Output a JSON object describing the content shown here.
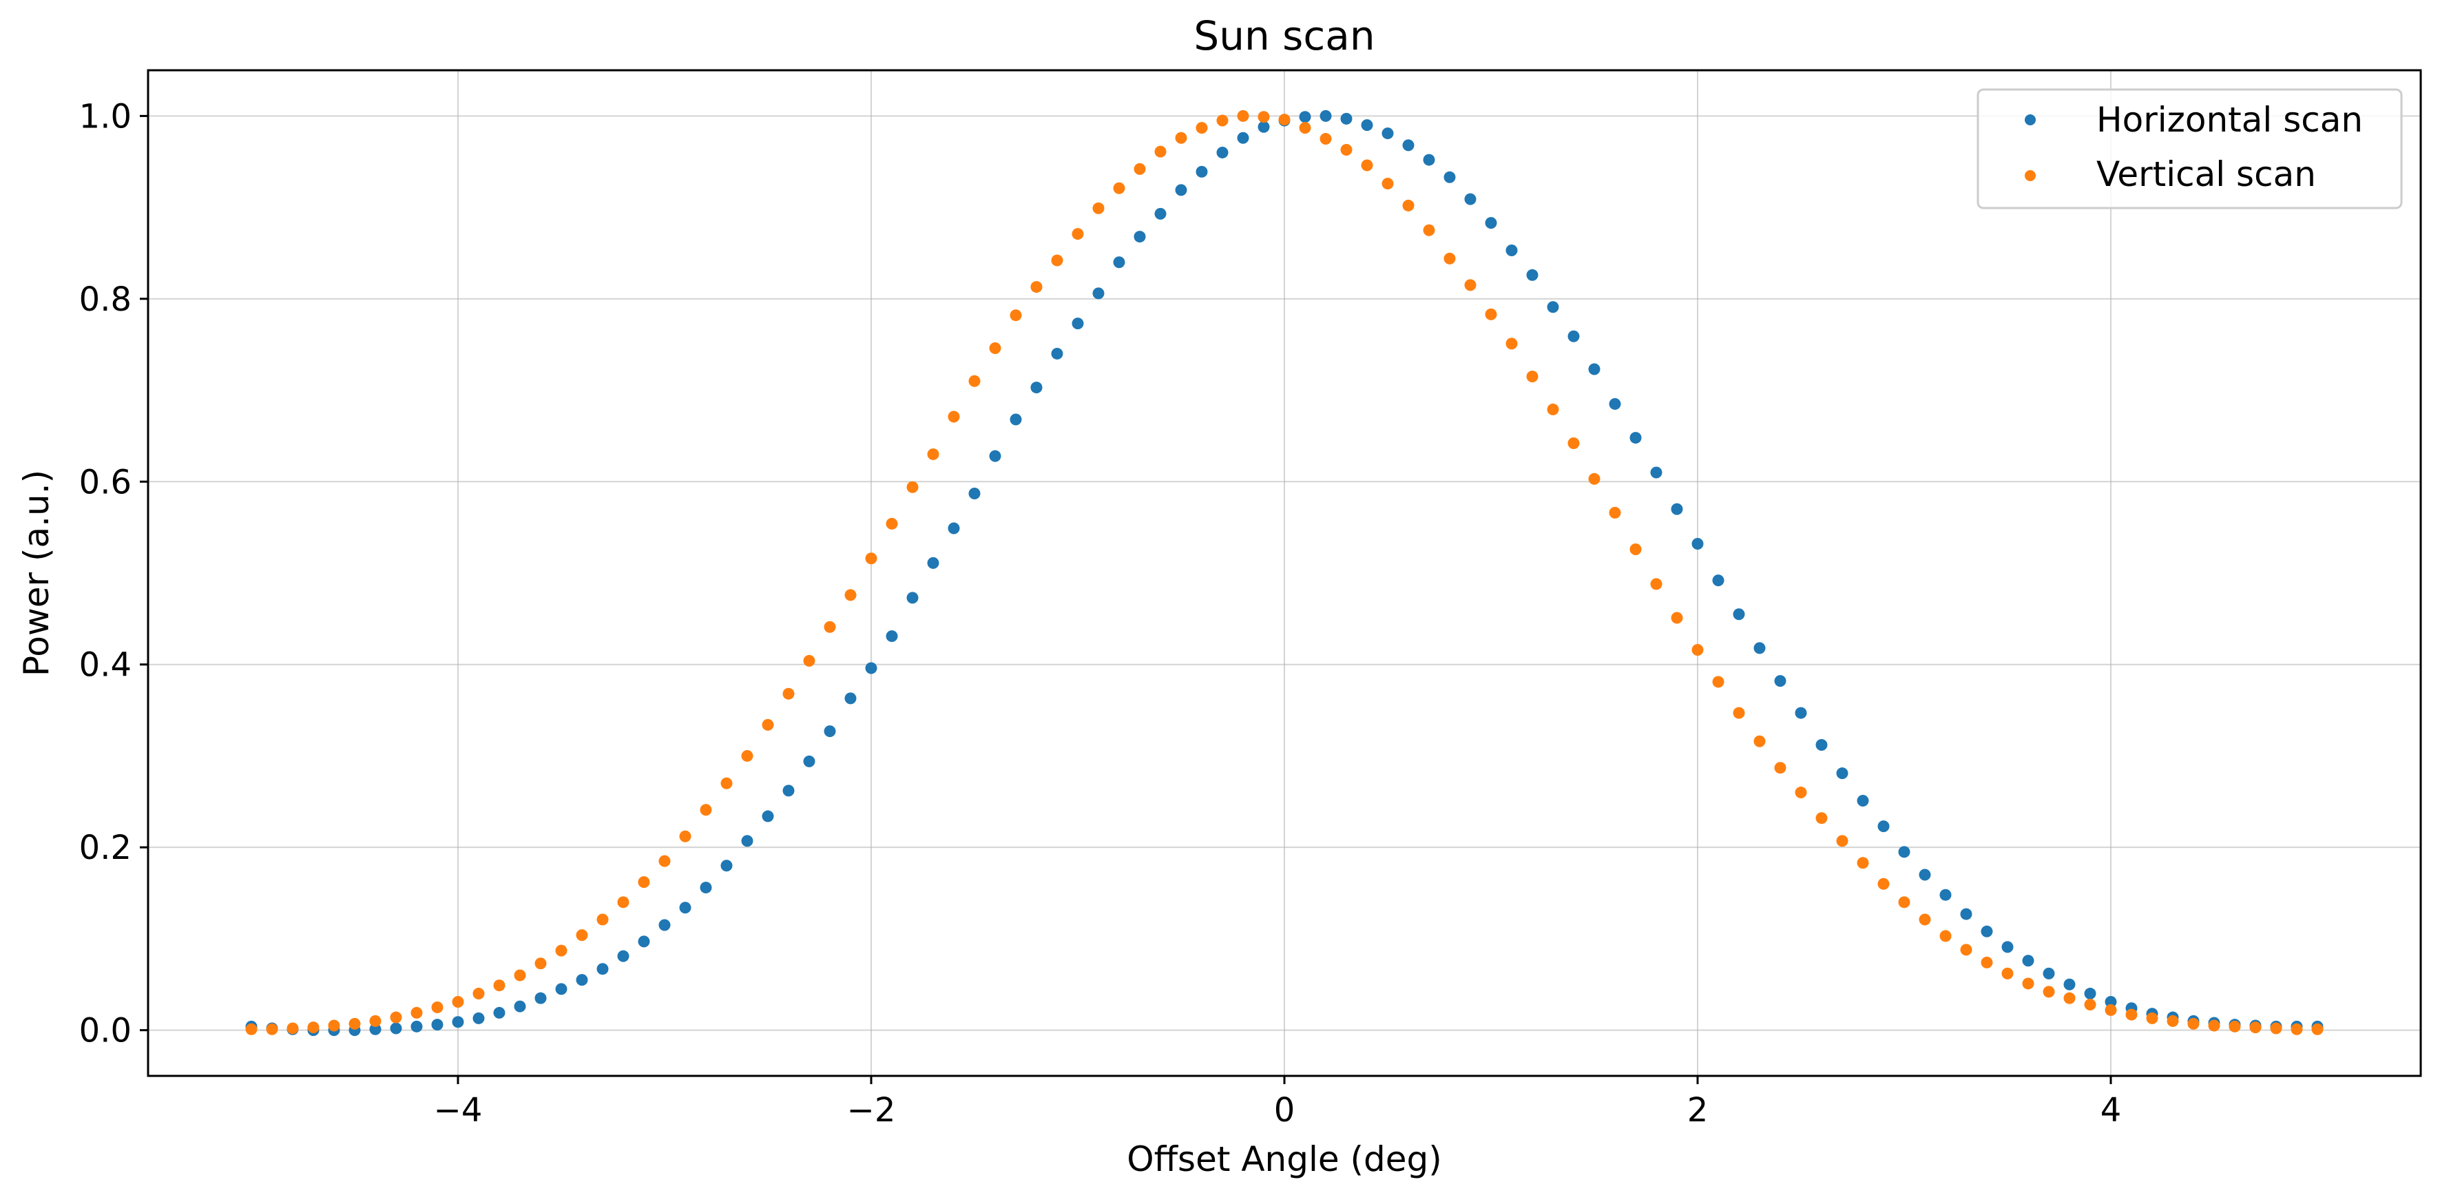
{
  "chart_data": {
    "type": "scatter",
    "title": "Sun scan",
    "xlabel": "Offset Angle (deg)",
    "ylabel": "Power (a.u.)",
    "xlim": [
      -5.5,
      5.5
    ],
    "ylim": [
      -0.05,
      1.05
    ],
    "x_ticks": [
      -4,
      -2,
      0,
      2,
      4
    ],
    "x_tick_labels": [
      "−4",
      "−2",
      "0",
      "2",
      "4"
    ],
    "y_ticks": [
      0.0,
      0.2,
      0.4,
      0.6,
      0.8,
      1.0
    ],
    "y_tick_labels": [
      "0.0",
      "0.2",
      "0.4",
      "0.6",
      "0.8",
      "1.0"
    ],
    "grid": true,
    "legend_position": "top-right",
    "x": [
      -5.0,
      -4.9,
      -4.8,
      -4.7,
      -4.6,
      -4.5,
      -4.4,
      -4.3,
      -4.2,
      -4.1,
      -4.0,
      -3.9,
      -3.8,
      -3.7,
      -3.6,
      -3.5,
      -3.4,
      -3.3,
      -3.2,
      -3.1,
      -3.0,
      -2.9,
      -2.8,
      -2.7,
      -2.6,
      -2.5,
      -2.4,
      -2.3,
      -2.2,
      -2.1,
      -2.0,
      -1.9,
      -1.8,
      -1.7,
      -1.6,
      -1.5,
      -1.4,
      -1.3,
      -1.2,
      -1.1,
      -1.0,
      -0.9,
      -0.8,
      -0.7,
      -0.6,
      -0.5,
      -0.4,
      -0.3,
      -0.2,
      -0.1,
      0.0,
      0.1,
      0.2,
      0.3,
      0.4,
      0.5,
      0.6,
      0.7,
      0.8,
      0.9,
      1.0,
      1.1,
      1.2,
      1.3,
      1.4,
      1.5,
      1.6,
      1.7,
      1.8,
      1.9,
      2.0,
      2.1,
      2.2,
      2.3,
      2.4,
      2.5,
      2.6,
      2.7,
      2.8,
      2.9,
      3.0,
      3.1,
      3.2,
      3.3,
      3.4,
      3.5,
      3.6,
      3.7,
      3.8,
      3.9,
      4.0,
      4.1,
      4.2,
      4.3,
      4.4,
      4.5,
      4.6,
      4.7,
      4.8,
      4.9,
      5.0
    ],
    "series": [
      {
        "name": "Horizontal scan",
        "color": "#1f77b4",
        "values": [
          0.004,
          0.002,
          0.001,
          0.0,
          0.0,
          0.0,
          0.001,
          0.002,
          0.004,
          0.006,
          0.009,
          0.013,
          0.019,
          0.026,
          0.035,
          0.045,
          0.055,
          0.067,
          0.081,
          0.097,
          0.115,
          0.134,
          0.156,
          0.18,
          0.207,
          0.234,
          0.262,
          0.294,
          0.327,
          0.363,
          0.396,
          0.431,
          0.473,
          0.511,
          0.549,
          0.587,
          0.628,
          0.668,
          0.703,
          0.74,
          0.773,
          0.806,
          0.84,
          0.868,
          0.893,
          0.919,
          0.939,
          0.96,
          0.976,
          0.988,
          0.995,
          0.999,
          1.0,
          0.997,
          0.99,
          0.981,
          0.968,
          0.952,
          0.933,
          0.909,
          0.883,
          0.853,
          0.826,
          0.791,
          0.759,
          0.723,
          0.685,
          0.648,
          0.61,
          0.57,
          0.532,
          0.492,
          0.455,
          0.418,
          0.382,
          0.347,
          0.312,
          0.281,
          0.251,
          0.223,
          0.195,
          0.17,
          0.148,
          0.127,
          0.108,
          0.091,
          0.076,
          0.062,
          0.05,
          0.04,
          0.031,
          0.024,
          0.018,
          0.014,
          0.01,
          0.008,
          0.006,
          0.005,
          0.004,
          0.004,
          0.004
        ]
      },
      {
        "name": "Vertical scan",
        "color": "#ff7f0e",
        "values": [
          0.001,
          0.001,
          0.002,
          0.003,
          0.005,
          0.007,
          0.01,
          0.014,
          0.019,
          0.025,
          0.031,
          0.04,
          0.049,
          0.06,
          0.073,
          0.087,
          0.104,
          0.121,
          0.14,
          0.162,
          0.185,
          0.212,
          0.241,
          0.27,
          0.3,
          0.334,
          0.368,
          0.404,
          0.441,
          0.476,
          0.516,
          0.554,
          0.594,
          0.63,
          0.671,
          0.71,
          0.746,
          0.782,
          0.813,
          0.842,
          0.871,
          0.899,
          0.921,
          0.942,
          0.961,
          0.976,
          0.987,
          0.995,
          1.0,
          0.999,
          0.996,
          0.987,
          0.975,
          0.963,
          0.946,
          0.926,
          0.902,
          0.875,
          0.844,
          0.815,
          0.783,
          0.751,
          0.715,
          0.679,
          0.642,
          0.603,
          0.566,
          0.526,
          0.488,
          0.451,
          0.416,
          0.381,
          0.347,
          0.316,
          0.287,
          0.26,
          0.232,
          0.207,
          0.183,
          0.16,
          0.14,
          0.121,
          0.103,
          0.088,
          0.074,
          0.062,
          0.051,
          0.042,
          0.035,
          0.028,
          0.022,
          0.017,
          0.013,
          0.01,
          0.007,
          0.005,
          0.004,
          0.003,
          0.002,
          0.001,
          0.001
        ]
      }
    ]
  }
}
